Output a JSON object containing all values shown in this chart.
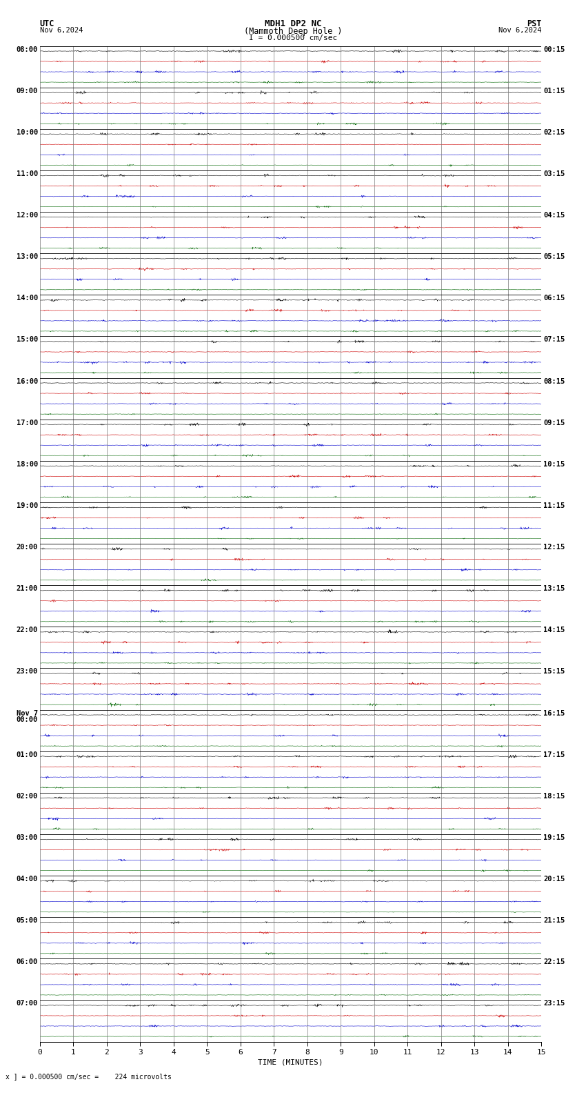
{
  "title_line1": "MDH1 DP2 NC",
  "title_line2": "(Mammoth Deep Hole )",
  "scale_label": "I = 0.000500 cm/sec",
  "utc_label": "UTC",
  "utc_date": "Nov 6,2024",
  "pst_label": "PST",
  "pst_date": "Nov 6,2024",
  "xlabel": "TIME (MINUTES)",
  "bottom_note": "x ] = 0.000500 cm/sec =    224 microvolts",
  "bg_color": "#ffffff",
  "trace_color_black": "#000000",
  "trace_color_red": "#cc0000",
  "trace_color_blue": "#0000cc",
  "trace_color_green": "#006600",
  "grid_color": "#777777",
  "left_labels_utc": [
    "08:00",
    "09:00",
    "10:00",
    "11:00",
    "12:00",
    "13:00",
    "14:00",
    "15:00",
    "16:00",
    "17:00",
    "18:00",
    "19:00",
    "20:00",
    "21:00",
    "22:00",
    "23:00",
    "Nov 7\n00:00",
    "01:00",
    "02:00",
    "03:00",
    "04:00",
    "05:00",
    "06:00",
    "07:00"
  ],
  "right_labels_pst": [
    "00:15",
    "01:15",
    "02:15",
    "03:15",
    "04:15",
    "05:15",
    "06:15",
    "07:15",
    "08:15",
    "09:15",
    "10:15",
    "11:15",
    "12:15",
    "13:15",
    "14:15",
    "15:15",
    "16:15",
    "17:15",
    "18:15",
    "19:15",
    "20:15",
    "21:15",
    "22:15",
    "23:15"
  ],
  "n_rows": 24,
  "traces_per_row": 4,
  "minutes": 15,
  "x_ticks": [
    0,
    1,
    2,
    3,
    4,
    5,
    6,
    7,
    8,
    9,
    10,
    11,
    12,
    13,
    14,
    15
  ],
  "noise_scale_black": 0.012,
  "noise_scale_red": 0.01,
  "noise_scale_blue": 0.01,
  "noise_scale_green": 0.008,
  "seed": 42
}
